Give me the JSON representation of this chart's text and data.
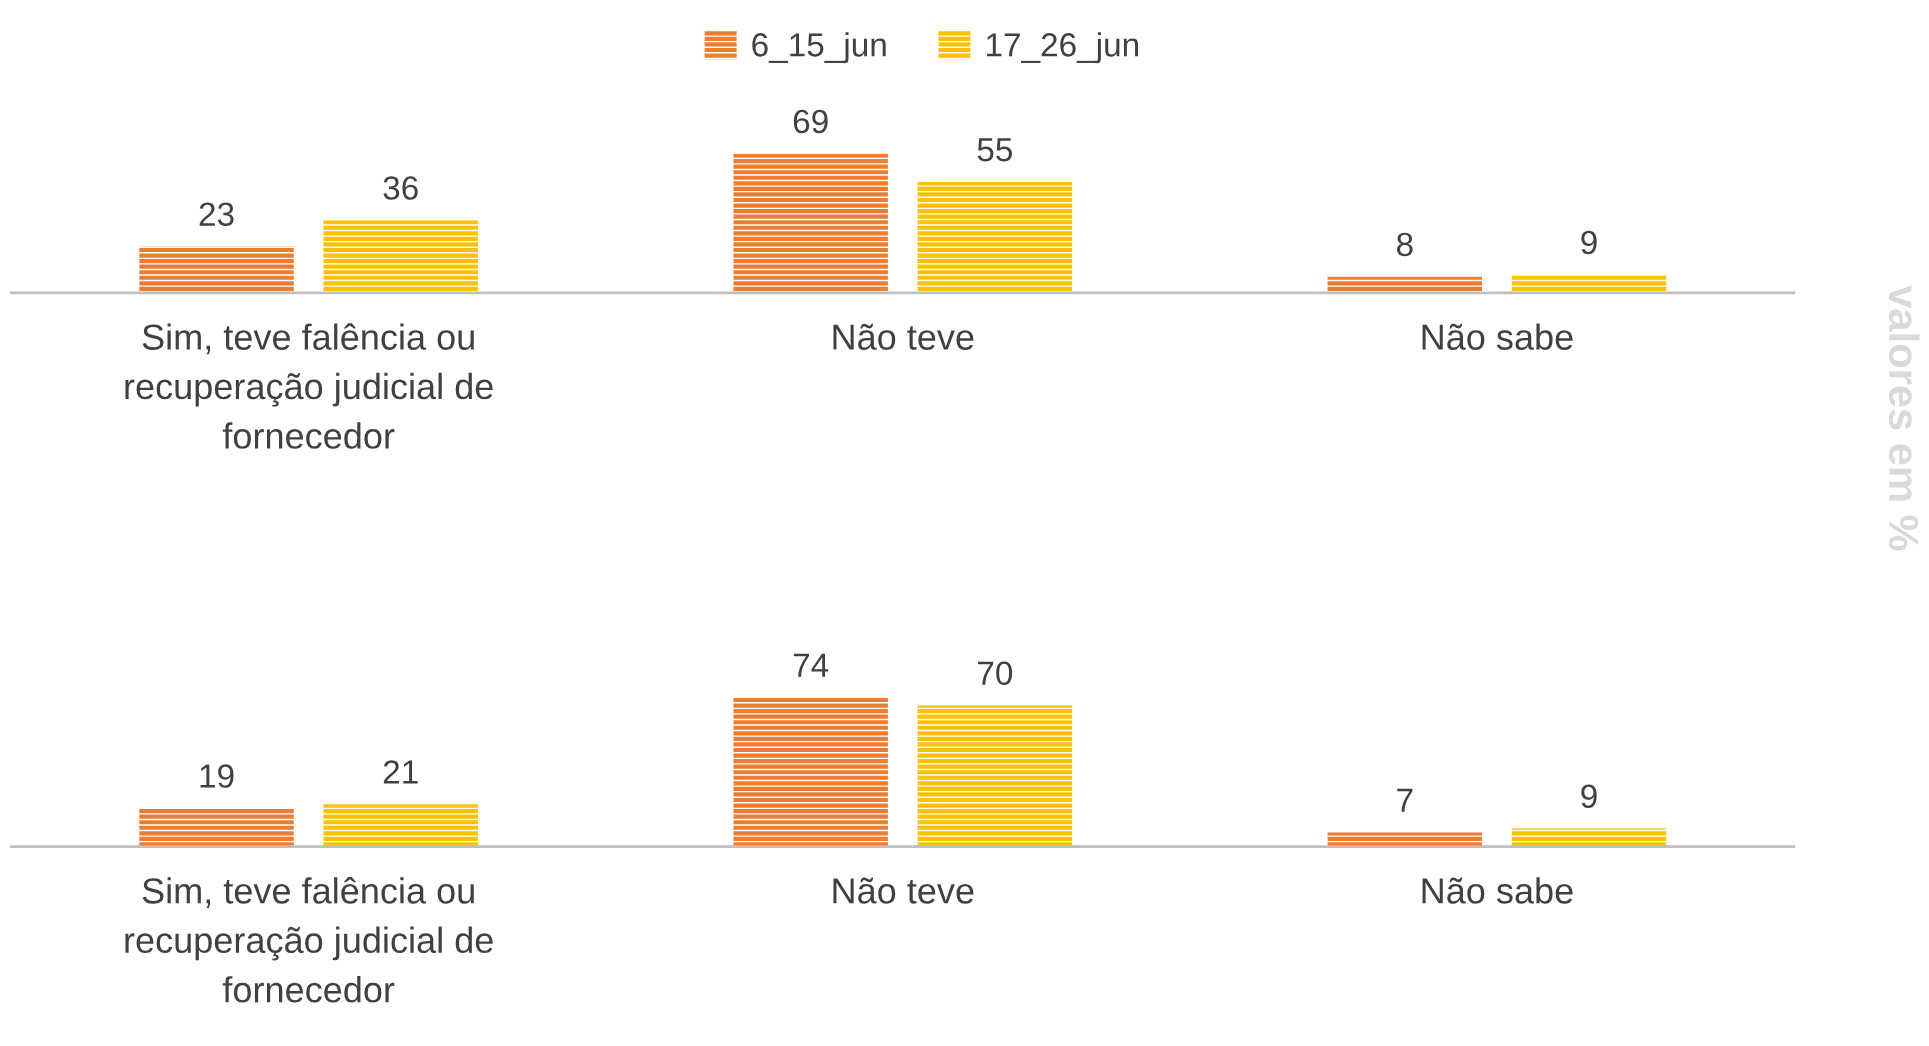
{
  "chart_data": [
    {
      "type": "bar",
      "categories": [
        "Sim, teve falência ou\nrecuperação judicial de\nfornecedor",
        "Não teve",
        "Não sabe"
      ],
      "series": [
        {
          "name": "6_15_jun",
          "color": "#ed7d31",
          "values": [
            23,
            69,
            8
          ]
        },
        {
          "name": "17_26_jun",
          "color": "#ffc000",
          "values": [
            36,
            55,
            9
          ]
        }
      ],
      "data_labels": true,
      "legend": "top",
      "grid": false,
      "annotations": [
        "valores em %"
      ]
    },
    {
      "type": "bar",
      "categories": [
        "Sim, teve falência ou\nrecuperação judicial de\nfornecedor",
        "Não teve",
        "Não sabe"
      ],
      "series": [
        {
          "color": "#ed7d31",
          "values": [
            19,
            74,
            7
          ]
        },
        {
          "color": "#ffc000",
          "values": [
            21,
            70,
            9
          ]
        }
      ],
      "data_labels": true,
      "grid": false
    }
  ]
}
